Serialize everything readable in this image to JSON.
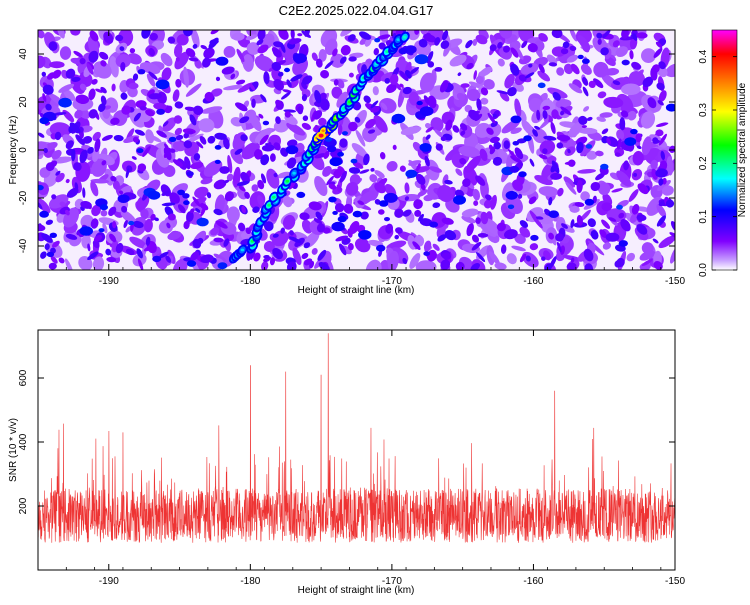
{
  "title": "C2E2.2025.022.04.04.G17",
  "chart_data": [
    {
      "type": "heatmap",
      "xlabel": "Height of straight line (km)",
      "ylabel": "Frequency (Hz)",
      "xlim": [
        -195,
        -150
      ],
      "ylim": [
        -50,
        50
      ],
      "xticks": [
        -190,
        -180,
        -170,
        -160,
        -150
      ],
      "yticks": [
        -40,
        -20,
        0,
        20,
        40
      ],
      "colorbar": {
        "label": "Normalized spectral amplitude",
        "range": [
          0,
          0.45
        ],
        "ticks": [
          0.0,
          0.1,
          0.2,
          0.3,
          0.4
        ],
        "colors": [
          "#ffffff",
          "#8000ff",
          "#0000ff",
          "#00ffff",
          "#00ff00",
          "#ffff00",
          "#ff8000",
          "#ff0000",
          "#ff00ff"
        ]
      },
      "ridge": {
        "description_points": [
          {
            "x": -181,
            "y": -45,
            "v": 0.2
          },
          {
            "x": -180,
            "y": -40,
            "v": 0.2
          },
          {
            "x": -179,
            "y": -28,
            "v": 0.18
          },
          {
            "x": -178,
            "y": -18,
            "v": 0.25
          },
          {
            "x": -176.5,
            "y": -8,
            "v": 0.2
          },
          {
            "x": -175.5,
            "y": 0,
            "v": 0.2
          },
          {
            "x": -175,
            "y": 6,
            "v": 0.45
          },
          {
            "x": -174,
            "y": 12,
            "v": 0.28
          },
          {
            "x": -173,
            "y": 20,
            "v": 0.25
          },
          {
            "x": -172,
            "y": 30,
            "v": 0.25
          },
          {
            "x": -171,
            "y": 36,
            "v": 0.22
          },
          {
            "x": -170,
            "y": 42,
            "v": 0.2
          },
          {
            "x": -169,
            "y": 48,
            "v": 0.2
          }
        ]
      }
    },
    {
      "type": "line",
      "xlabel": "Height of straight line (km)",
      "ylabel": "SNR (10 * v/v)",
      "xlim": [
        -195,
        -150
      ],
      "ylim": [
        0,
        750
      ],
      "xticks": [
        -190,
        -180,
        -170,
        -160,
        -150
      ],
      "yticks": [
        200,
        400,
        600
      ],
      "series_color": "#ee3333",
      "baseline_mean": 170,
      "notable_peaks": [
        {
          "x": -180,
          "y": 640
        },
        {
          "x": -177.5,
          "y": 620
        },
        {
          "x": -175,
          "y": 610
        },
        {
          "x": -174.5,
          "y": 740
        },
        {
          "x": -158.5,
          "y": 560
        },
        {
          "x": -189,
          "y": 430
        }
      ]
    }
  ]
}
